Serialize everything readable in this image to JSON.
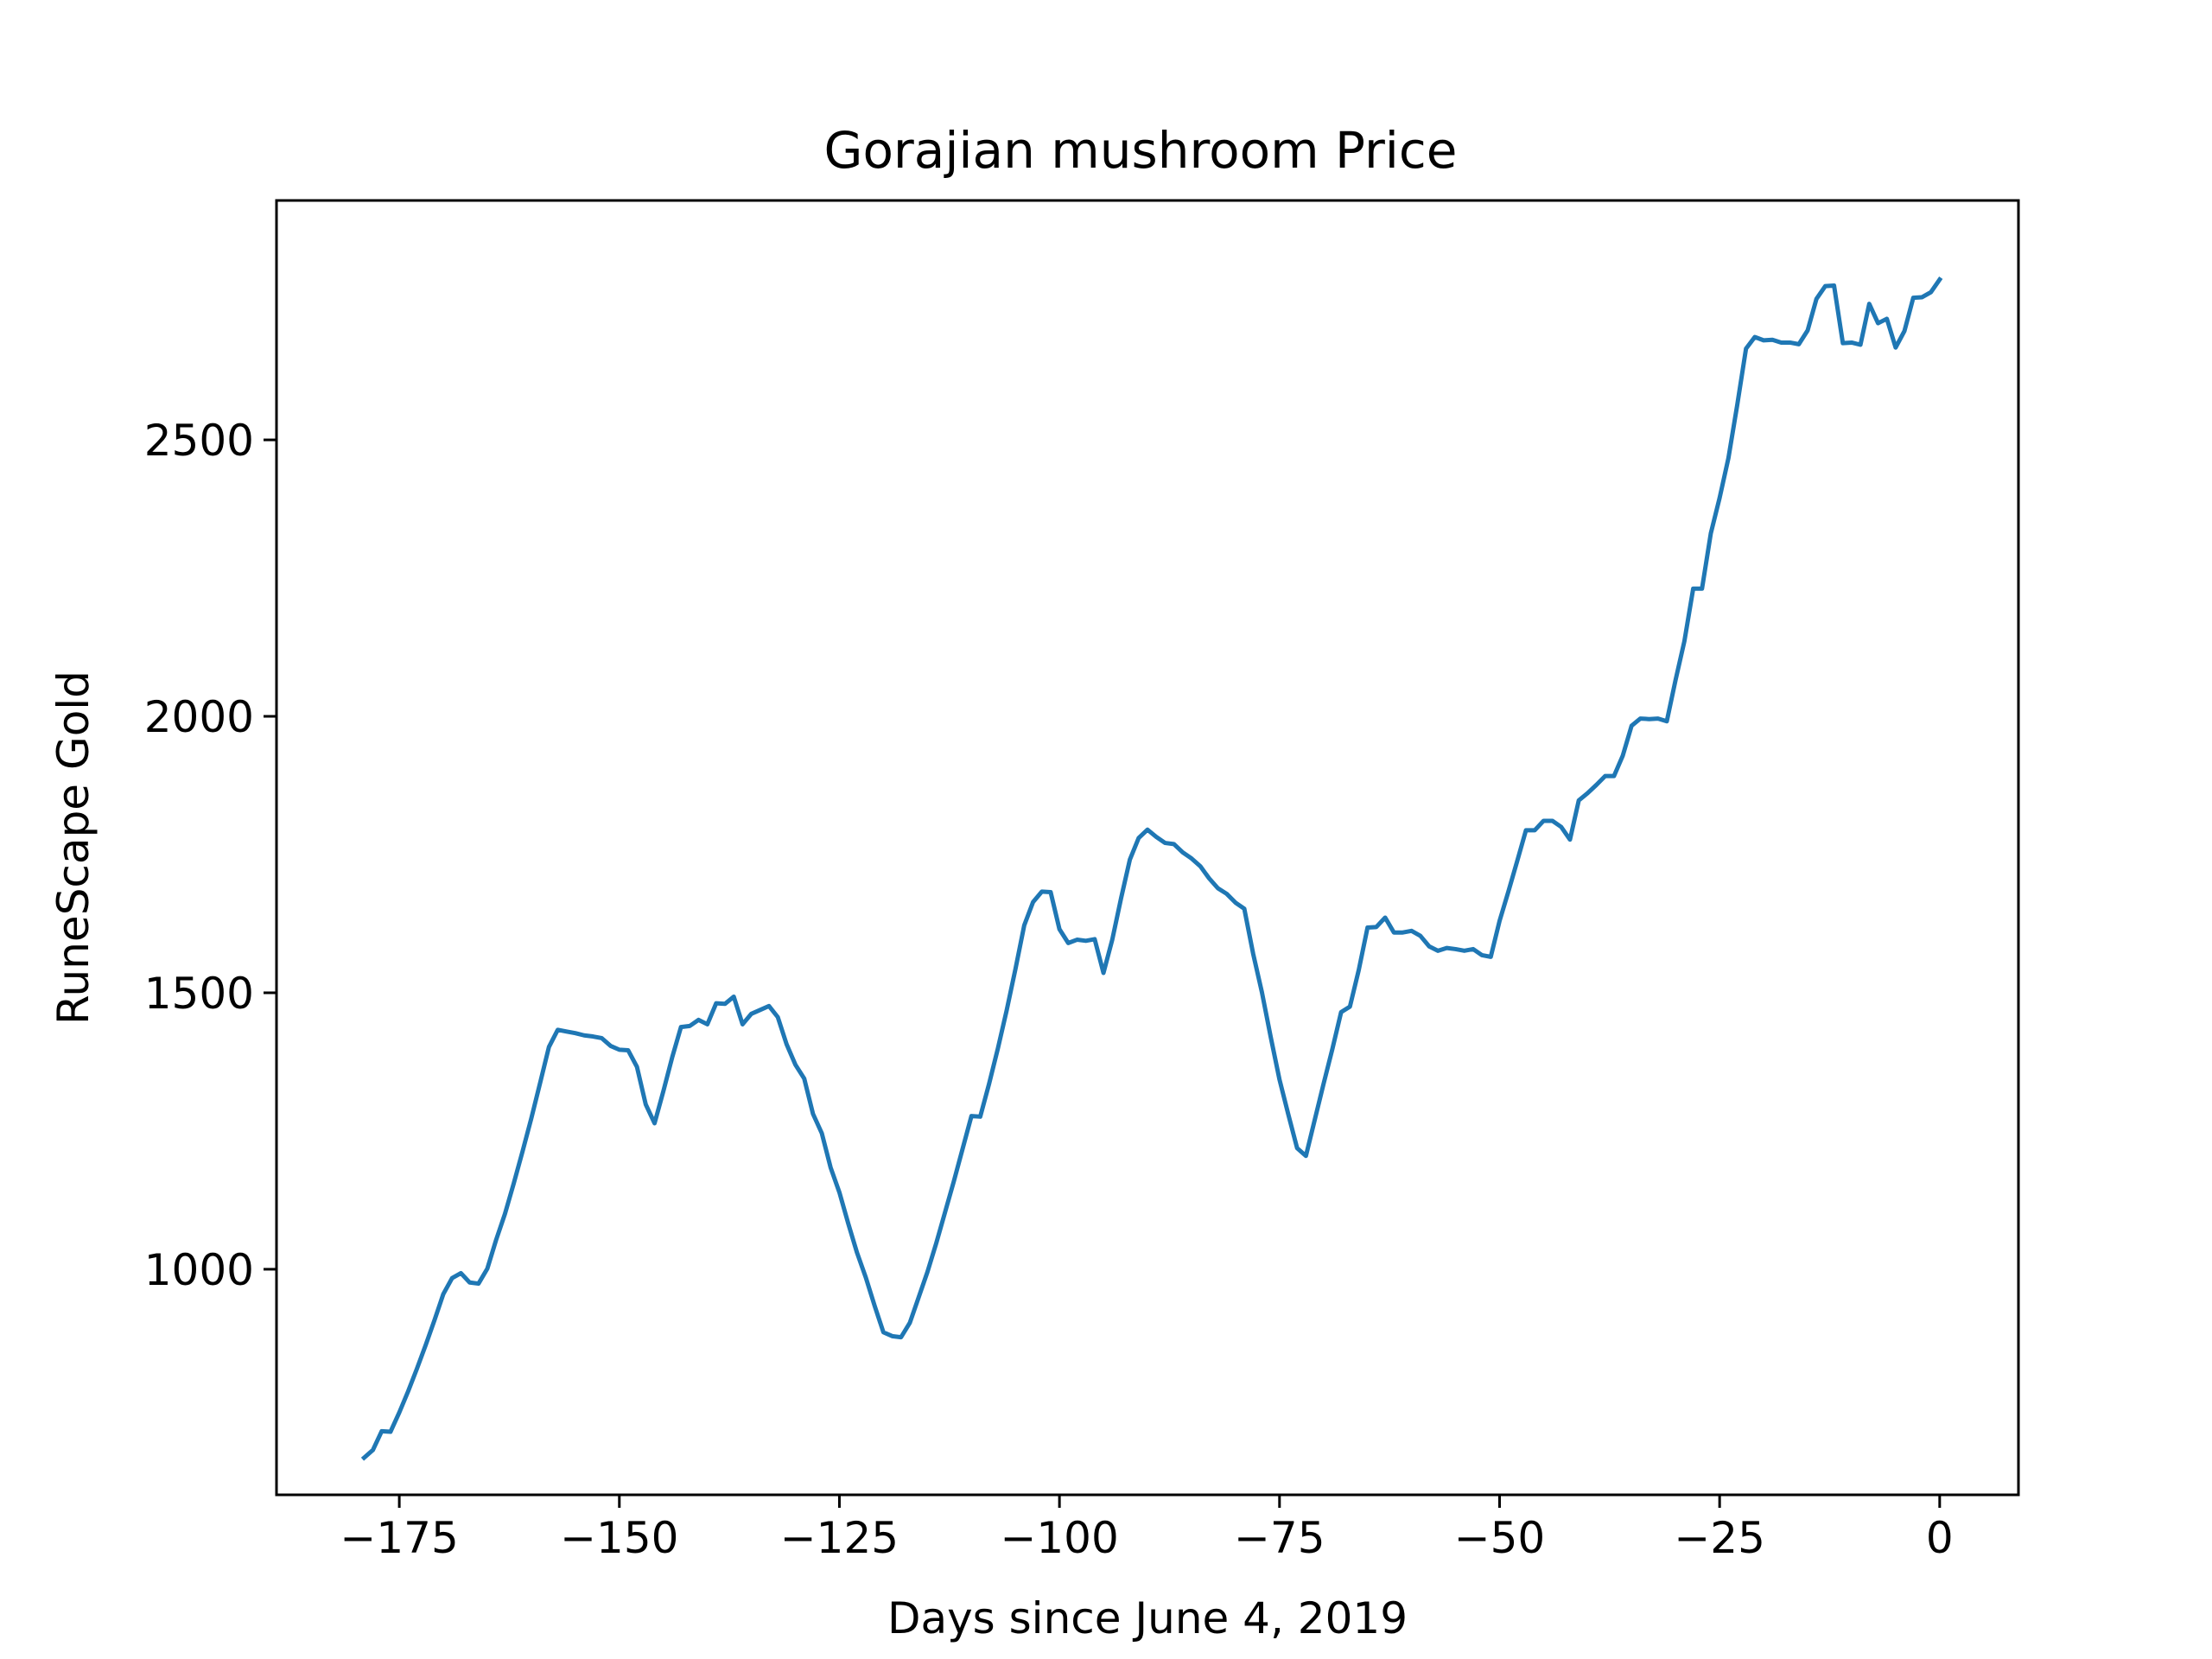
{
  "chart_data": {
    "type": "line",
    "title": "Gorajian mushroom Price",
    "xlabel": "Days since June 4, 2019",
    "ylabel": "RuneScape Gold",
    "xlim": [
      -188.95,
      8.95
    ],
    "ylim": [
      592,
      2933
    ],
    "xticks": [
      -175,
      -150,
      -125,
      -100,
      -75,
      -50,
      -25,
      0
    ],
    "xtick_labels": [
      "−175",
      "−150",
      "−125",
      "−100",
      "−75",
      "−50",
      "−25",
      "0"
    ],
    "yticks": [
      1000,
      1500,
      2000,
      2500
    ],
    "ytick_labels": [
      "1000",
      "1500",
      "2000",
      "2500"
    ],
    "grid": false,
    "color": "#1f77b4",
    "series": [
      {
        "x": [
          -179,
          -178,
          -177,
          -176,
          -175,
          -174,
          -173,
          -172,
          -171,
          -170,
          -169,
          -168,
          -167,
          -166,
          -165,
          -164,
          -163,
          -162,
          -161,
          -160,
          -159,
          -158,
          -157,
          -156,
          -155,
          -154,
          -153,
          -152,
          -151,
          -150,
          -149,
          -148,
          -147,
          -146,
          -145,
          -144,
          -143,
          -142,
          -141,
          -140,
          -139,
          -138,
          -137,
          -136,
          -135,
          -134,
          -133,
          -132,
          -131,
          -130,
          -129,
          -128,
          -127,
          -126,
          -125,
          -124,
          -123,
          -122,
          -121,
          -120,
          -119,
          -118,
          -117,
          -116,
          -115,
          -114,
          -113,
          -112,
          -111,
          -110,
          -109,
          -108,
          -107,
          -106,
          -105,
          -104,
          -103,
          -102,
          -101,
          -100,
          -99,
          -98,
          -97,
          -96,
          -95,
          -94,
          -93,
          -92,
          -91,
          -90,
          -89,
          -88,
          -87,
          -86,
          -85,
          -84,
          -83,
          -82,
          -81,
          -80,
          -79,
          -78,
          -77,
          -76,
          -75,
          -74,
          -73,
          -72,
          -71,
          -70,
          -69,
          -68,
          -67,
          -66,
          -65,
          -64,
          -63,
          -62,
          -61,
          -60,
          -59,
          -58,
          -57,
          -56,
          -55,
          -54,
          -53,
          -52,
          -51,
          -50,
          -49,
          -48,
          -47,
          -46,
          -45,
          -44,
          -43,
          -42,
          -41,
          -40,
          -39,
          -38,
          -37,
          -36,
          -35,
          -34,
          -33,
          -32,
          -31,
          -30,
          -29,
          -28,
          -27,
          -26,
          -25,
          -24,
          -23,
          -22,
          -21,
          -20,
          -19,
          -18,
          -17,
          -16,
          -15,
          -14,
          -13,
          -12,
          -11,
          -10,
          -9,
          -8,
          -7,
          -6,
          -5,
          -4,
          -3,
          -2,
          -1,
          0
        ],
        "y": [
          659,
          673,
          707,
          706,
          741,
          779,
          820,
          863,
          908,
          955,
          984,
          993,
          976,
          974,
          1001,
          1053,
          1100,
          1155,
          1213,
          1273,
          1337,
          1402,
          1433,
          1430,
          1427,
          1423,
          1421,
          1418,
          1404,
          1397,
          1396,
          1366,
          1298,
          1264,
          1322,
          1383,
          1438,
          1440,
          1451,
          1443,
          1481,
          1480,
          1493,
          1443,
          1462,
          1469,
          1476,
          1456,
          1407,
          1370,
          1345,
          1281,
          1246,
          1184,
          1139,
          1083,
          1030,
          985,
          934,
          886,
          879,
          877,
          903,
          949,
          995,
          1047,
          1103,
          1159,
          1218,
          1277,
          1276,
          1335,
          1399,
          1468,
          1543,
          1622,
          1664,
          1683,
          1682,
          1615,
          1590,
          1596,
          1594,
          1597,
          1536,
          1596,
          1671,
          1741,
          1780,
          1795,
          1782,
          1771,
          1769,
          1754,
          1743,
          1729,
          1707,
          1689,
          1679,
          1663,
          1652,
          1571,
          1501,
          1420,
          1343,
          1280,
          1219,
          1205,
          1270,
          1335,
          1398,
          1465,
          1475,
          1541,
          1618,
          1619,
          1636,
          1609,
          1609,
          1612,
          1603,
          1584,
          1576,
          1581,
          1579,
          1576,
          1579,
          1568,
          1565,
          1630,
          1683,
          1738,
          1794,
          1794,
          1811,
          1811,
          1800,
          1777,
          1848,
          1861,
          1876,
          1892,
          1892,
          1929,
          1983,
          1996,
          1995,
          1996,
          1991,
          2066,
          2136,
          2231,
          2231,
          2331,
          2395,
          2467,
          2563,
          2665,
          2686,
          2680,
          2681,
          2676,
          2676,
          2673,
          2698,
          2755,
          2778,
          2779,
          2675,
          2676,
          2672,
          2746,
          2711,
          2719,
          2667,
          2697,
          2757,
          2758,
          2767,
          2790
        ]
      }
    ]
  }
}
